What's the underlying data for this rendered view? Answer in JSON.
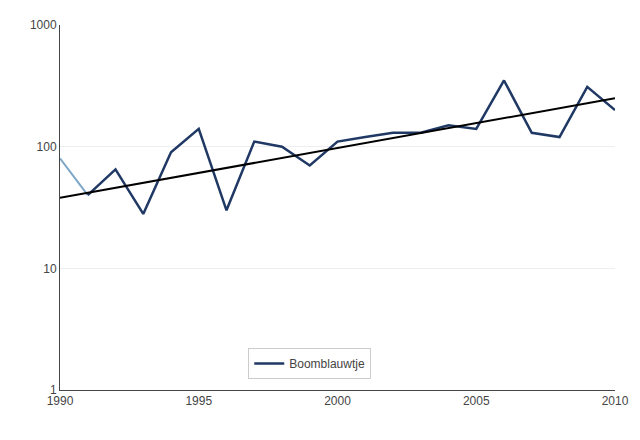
{
  "chart_data": {
    "type": "line",
    "series": [
      {
        "x": [
          1990,
          1991
        ],
        "values": [
          80,
          40
        ],
        "color": "#7FA7C8"
      },
      {
        "name": "Boomblauwtje",
        "x": [
          1991,
          1992,
          1993,
          1994,
          1995,
          1996,
          1997,
          1998,
          1999,
          2000,
          2001,
          2002,
          2003,
          2004,
          2005,
          2006,
          2007,
          2008,
          2009,
          2010
        ],
        "values": [
          40,
          65,
          28,
          90,
          140,
          30,
          110,
          100,
          70,
          110,
          120,
          130,
          130,
          150,
          140,
          350,
          130,
          120,
          310,
          200
        ],
        "color": "#1F3864"
      },
      {
        "x": [
          1990,
          2010
        ],
        "values": [
          38,
          250
        ],
        "color": "#000000"
      }
    ],
    "xlim": [
      1990,
      2010
    ],
    "xticks": [
      1990,
      1995,
      2000,
      2005,
      2010
    ],
    "ylim": [
      1,
      1000
    ],
    "yticks": [
      1,
      10,
      100,
      1000
    ],
    "log": "y",
    "grid": "y",
    "legend": "lower center"
  }
}
